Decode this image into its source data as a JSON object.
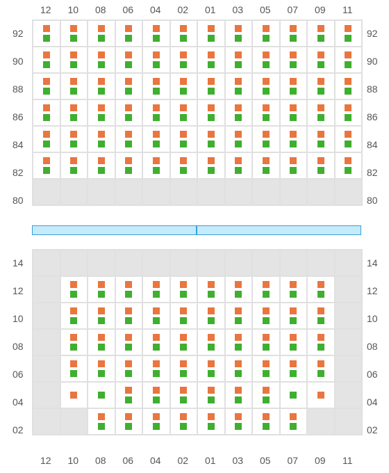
{
  "layout": {
    "cols": 12,
    "colLabels": [
      "12",
      "10",
      "08",
      "06",
      "04",
      "02",
      "01",
      "03",
      "05",
      "07",
      "09",
      "11"
    ],
    "topRows": [
      "92",
      "90",
      "88",
      "86",
      "84",
      "82",
      "80"
    ],
    "botRows": [
      "14",
      "12",
      "10",
      "08",
      "06",
      "04",
      "02"
    ],
    "topGrid": [
      [
        "OG",
        "OG",
        "OG",
        "OG",
        "OG",
        "OG",
        "OG",
        "OG",
        "OG",
        "OG",
        "OG",
        "OG"
      ],
      [
        "OG",
        "OG",
        "OG",
        "OG",
        "OG",
        "OG",
        "OG",
        "OG",
        "OG",
        "OG",
        "OG",
        "OG"
      ],
      [
        "OG",
        "OG",
        "OG",
        "OG",
        "OG",
        "OG",
        "OG",
        "OG",
        "OG",
        "OG",
        "OG",
        "OG"
      ],
      [
        "OG",
        "OG",
        "OG",
        "OG",
        "OG",
        "OG",
        "OG",
        "OG",
        "OG",
        "OG",
        "OG",
        "OG"
      ],
      [
        "OG",
        "OG",
        "OG",
        "OG",
        "OG",
        "OG",
        "OG",
        "OG",
        "OG",
        "OG",
        "OG",
        "OG"
      ],
      [
        "OG",
        "OG",
        "OG",
        "OG",
        "OG",
        "OG",
        "OG",
        "OG",
        "OG",
        "OG",
        "OG",
        "OG"
      ],
      [
        "E",
        "E",
        "E",
        "E",
        "E",
        "E",
        "E",
        "E",
        "E",
        "E",
        "E",
        "E"
      ]
    ],
    "botGrid": [
      [
        "E",
        "E",
        "E",
        "E",
        "E",
        "E",
        "E",
        "E",
        "E",
        "E",
        "E",
        "E"
      ],
      [
        "E",
        "OG",
        "OG",
        "OG",
        "OG",
        "OG",
        "OG",
        "OG",
        "OG",
        "OG",
        "OG",
        "E"
      ],
      [
        "E",
        "OG",
        "OG",
        "OG",
        "OG",
        "OG",
        "OG",
        "OG",
        "OG",
        "OG",
        "OG",
        "E"
      ],
      [
        "E",
        "OG",
        "OG",
        "OG",
        "OG",
        "OG",
        "OG",
        "OG",
        "OG",
        "OG",
        "OG",
        "E"
      ],
      [
        "E",
        "OG",
        "OG",
        "OG",
        "OG",
        "OG",
        "OG",
        "OG",
        "OG",
        "OG",
        "OG",
        "E"
      ],
      [
        "E",
        "O",
        "G",
        "OG",
        "OG",
        "OG",
        "OG",
        "OG",
        "OG",
        "G",
        "O",
        "E"
      ],
      [
        "E",
        "E",
        "OG",
        "OG",
        "OG",
        "OG",
        "OG",
        "OG",
        "OG",
        "OG",
        "E",
        "E"
      ]
    ],
    "colors": {
      "orange": "#e97640",
      "green": "#3faf2f",
      "empty": "#e4e4e4",
      "divider_fill": "#c5eaf9",
      "divider_border": "#38a0da"
    }
  }
}
